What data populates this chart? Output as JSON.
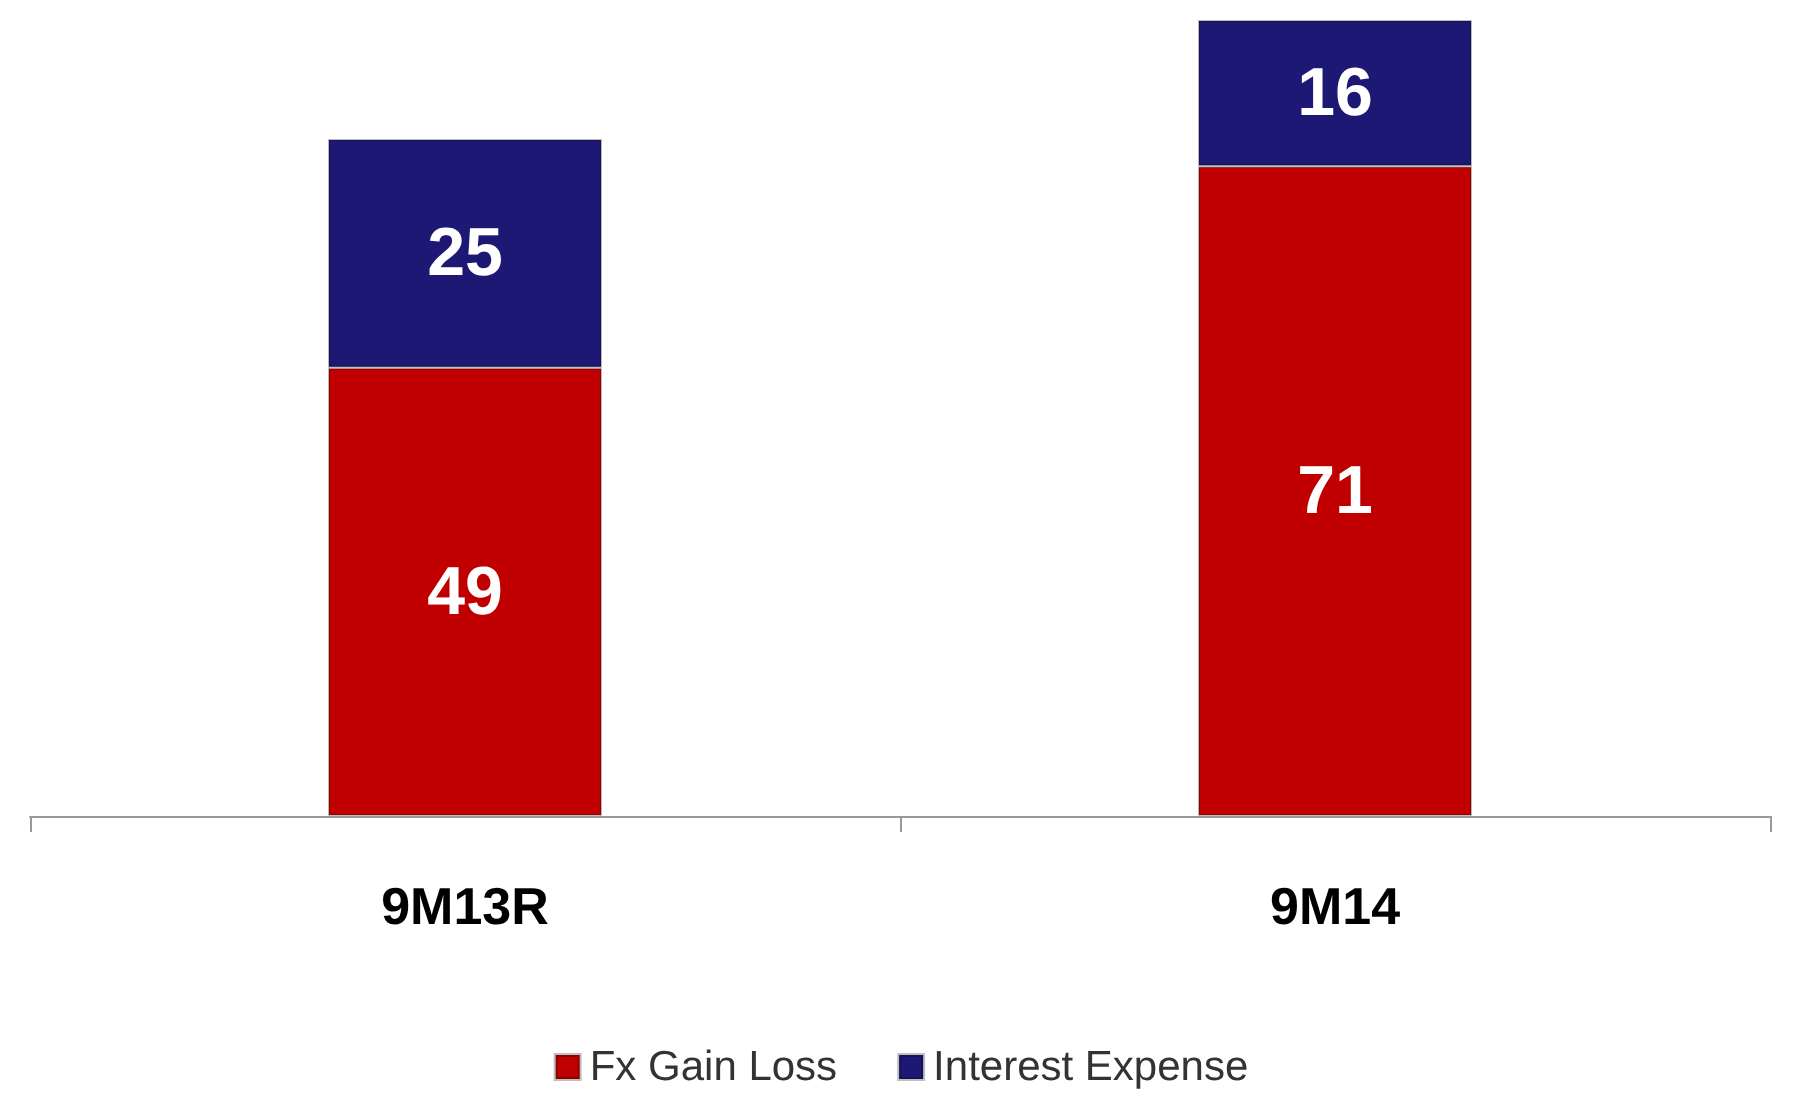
{
  "chart_data": {
    "type": "bar",
    "stacked": true,
    "data_labels": true,
    "legend": "bottom",
    "categories": [
      "9M13R",
      "9M14"
    ],
    "series": [
      {
        "name": "Fx Gain Loss",
        "color": "#c00000",
        "values": [
          49,
          71
        ]
      },
      {
        "name": "Interest Expense",
        "color": "#1c1873",
        "values": [
          25,
          16
        ]
      }
    ]
  }
}
